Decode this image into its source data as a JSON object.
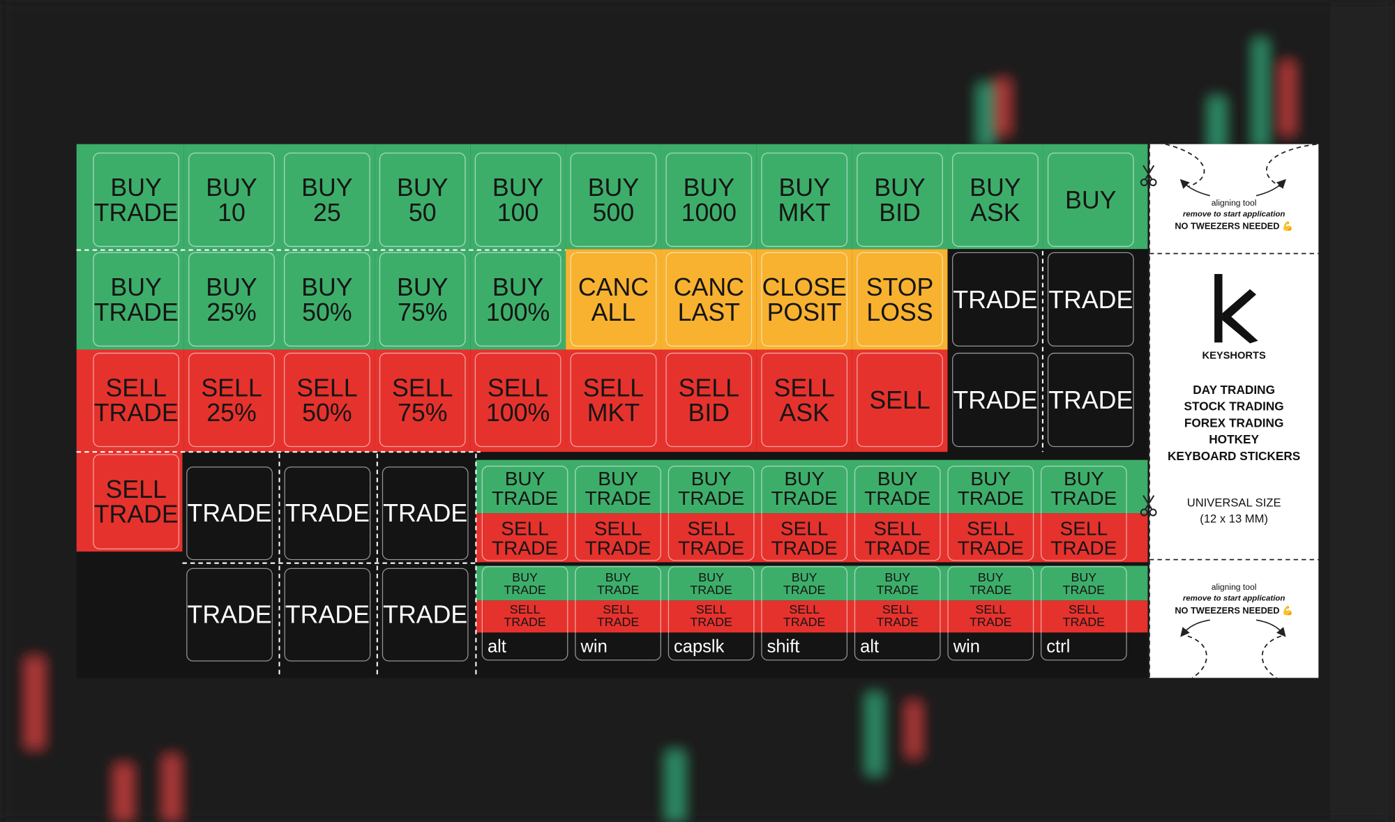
{
  "sheet": {
    "rows": [
      {
        "segments": [
          {
            "color": "#3dae6a",
            "text_color": "#151515",
            "keys": [
              [
                "BUY",
                "TRADE"
              ],
              [
                "BUY",
                "10"
              ],
              [
                "BUY",
                "25"
              ],
              [
                "BUY",
                "50"
              ],
              [
                "BUY",
                "100"
              ],
              [
                "BUY",
                "500"
              ],
              [
                "BUY",
                "1000"
              ],
              [
                "BUY",
                "MKT"
              ],
              [
                "BUY",
                "BID"
              ],
              [
                "BUY",
                "ASK"
              ],
              [
                "BUY"
              ]
            ]
          }
        ]
      },
      {
        "segments": [
          {
            "color": "#3dae6a",
            "text_color": "#151515",
            "keys": [
              [
                "BUY",
                "TRADE"
              ],
              [
                "BUY",
                "25%"
              ],
              [
                "BUY",
                "50%"
              ],
              [
                "BUY",
                "75%"
              ],
              [
                "BUY",
                "100%"
              ]
            ]
          },
          {
            "color": "#f8b230",
            "text_color": "#151515",
            "keys": [
              [
                "CANC",
                "ALL"
              ],
              [
                "CANC",
                "LAST"
              ],
              [
                "CLOSE",
                "POSIT"
              ],
              [
                "STOP",
                "LOSS"
              ]
            ]
          },
          {
            "color": "#141414",
            "text_color": "#ffffff",
            "keys": [
              [
                "TRADE"
              ],
              [
                "TRADE"
              ]
            ]
          }
        ]
      },
      {
        "segments": [
          {
            "color": "#e6322d",
            "text_color": "#151515",
            "keys": [
              [
                "SELL",
                "TRADE"
              ],
              [
                "SELL",
                "25%"
              ],
              [
                "SELL",
                "50%"
              ],
              [
                "SELL",
                "75%"
              ],
              [
                "SELL",
                "100%"
              ],
              [
                "SELL",
                "MKT"
              ],
              [
                "SELL",
                "BID"
              ],
              [
                "SELL",
                "ASK"
              ],
              [
                "SELL"
              ]
            ]
          },
          {
            "color": "#141414",
            "text_color": "#ffffff",
            "keys": [
              [
                "TRADE"
              ],
              [
                "TRADE"
              ]
            ]
          }
        ]
      }
    ],
    "lower_left": {
      "sell_key": {
        "color": "#e6322d",
        "text_color": "#151515",
        "lines": [
          "SELL",
          "TRADE"
        ]
      },
      "trade_color": "#141414",
      "trade_text_color": "#ffffff",
      "trade_keys": [
        [
          "TRADE"
        ],
        [
          "TRADE"
        ],
        [
          "TRADE"
        ],
        [
          "TRADE"
        ],
        [
          "TRADE"
        ],
        [
          "TRADE"
        ]
      ]
    },
    "split_keys": {
      "top_color": "#3dae6a",
      "bottom_color": "#e6322d",
      "base_color": "#141414",
      "large": [
        {
          "top": [
            "BUY",
            "TRADE"
          ],
          "bottom": [
            "SELL",
            "TRADE"
          ]
        },
        {
          "top": [
            "BUY",
            "TRADE"
          ],
          "bottom": [
            "SELL",
            "TRADE"
          ]
        },
        {
          "top": [
            "BUY",
            "TRADE"
          ],
          "bottom": [
            "SELL",
            "TRADE"
          ]
        },
        {
          "top": [
            "BUY",
            "TRADE"
          ],
          "bottom": [
            "SELL",
            "TRADE"
          ]
        },
        {
          "top": [
            "BUY",
            "TRADE"
          ],
          "bottom": [
            "SELL",
            "TRADE"
          ]
        },
        {
          "top": [
            "BUY",
            "TRADE"
          ],
          "bottom": [
            "SELL",
            "TRADE"
          ]
        },
        {
          "top": [
            "BUY",
            "TRADE"
          ],
          "bottom": [
            "SELL",
            "TRADE"
          ]
        }
      ],
      "small": [
        {
          "top": [
            "BUY",
            "TRADE"
          ],
          "bottom": [
            "SELL",
            "TRADE"
          ],
          "modifier": "alt"
        },
        {
          "top": [
            "BUY",
            "TRADE"
          ],
          "bottom": [
            "SELL",
            "TRADE"
          ],
          "modifier": "win"
        },
        {
          "top": [
            "BUY",
            "TRADE"
          ],
          "bottom": [
            "SELL",
            "TRADE"
          ],
          "modifier": "capslk"
        },
        {
          "top": [
            "BUY",
            "TRADE"
          ],
          "bottom": [
            "SELL",
            "TRADE"
          ],
          "modifier": "shift"
        },
        {
          "top": [
            "BUY",
            "TRADE"
          ],
          "bottom": [
            "SELL",
            "TRADE"
          ],
          "modifier": "alt"
        },
        {
          "top": [
            "BUY",
            "TRADE"
          ],
          "bottom": [
            "SELL",
            "TRADE"
          ],
          "modifier": "win"
        },
        {
          "top": [
            "BUY",
            "TRADE"
          ],
          "bottom": [
            "SELL",
            "TRADE"
          ],
          "modifier": "ctrl"
        }
      ]
    }
  },
  "side_panel": {
    "top_tool": {
      "title": "aligning tool",
      "note": "remove to start application",
      "tagline": "NO TWEEZERS NEEDED 💪"
    },
    "brand": "KEYSHORTS",
    "uses": [
      "DAY TRADING",
      "STOCK TRADING",
      "FOREX TRADING",
      "HOTKEY",
      "KEYBOARD STICKERS"
    ],
    "size_title": "UNIVERSAL SIZE",
    "size": "(12 x 13 MM)",
    "bottom_tool": {
      "title": "aligning tool",
      "note": "remove to start application",
      "tagline": "NO TWEEZERS NEEDED 💪"
    }
  }
}
